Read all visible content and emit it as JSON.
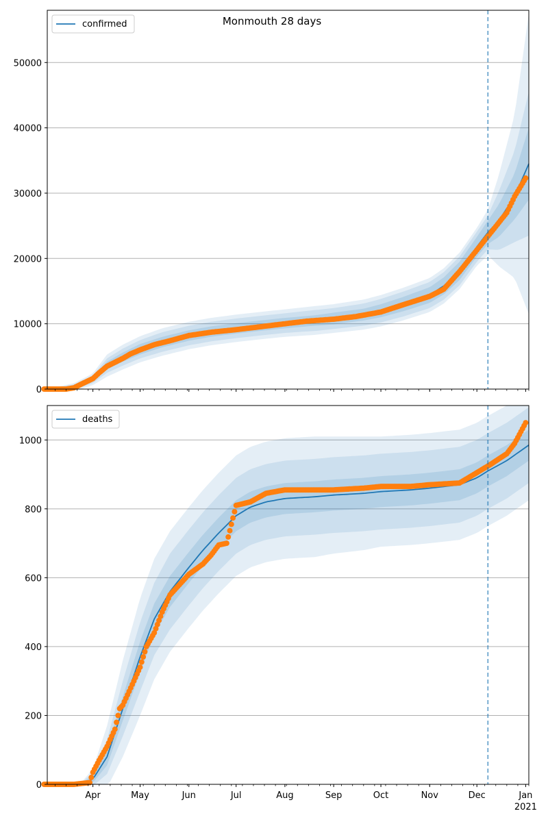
{
  "title": "Monmouth 28 days",
  "x_tick_labels": [
    "Apr",
    "May",
    "Jun",
    "Jul",
    "Aug",
    "Sep",
    "Oct",
    "Nov",
    "Dec",
    "Jan"
  ],
  "x_year_label": "2021",
  "chart_data": [
    {
      "type": "line",
      "panel": "top",
      "title": "Monmouth 28 days",
      "legend": [
        "confirmed"
      ],
      "legend_placement": "top-left",
      "grid": "horizontal",
      "xlim": [
        "2020-03-03",
        "2021-01-03"
      ],
      "ylim": [
        0,
        58000
      ],
      "y_ticks": [
        0,
        10000,
        20000,
        30000,
        40000,
        50000
      ],
      "forecast_start": "2020-12-08",
      "series": [
        {
          "name": "confirmed",
          "style": "model line with uncertainty bands",
          "x": [
            "2020-03-03",
            "2020-03-20",
            "2020-04-01",
            "2020-04-10",
            "2020-04-20",
            "2020-05-01",
            "2020-05-15",
            "2020-06-01",
            "2020-06-15",
            "2020-07-01",
            "2020-07-20",
            "2020-08-01",
            "2020-08-20",
            "2020-09-01",
            "2020-09-20",
            "2020-10-01",
            "2020-10-15",
            "2020-11-01",
            "2020-11-10",
            "2020-11-20",
            "2020-12-01",
            "2020-12-08",
            "2020-12-15",
            "2020-12-25",
            "2021-01-03"
          ],
          "values": [
            0,
            300,
            1500,
            3600,
            4900,
            6100,
            7200,
            8200,
            8800,
            9300,
            9800,
            10100,
            10500,
            10800,
            11400,
            12000,
            13000,
            14400,
            15800,
            18100,
            21800,
            24000,
            25800,
            29500,
            34500
          ],
          "band_50": [
            0,
            200,
            300,
            600,
            700,
            800,
            800,
            800,
            800,
            800,
            800,
            800,
            800,
            900,
            900,
            1000,
            1100,
            1200,
            1300,
            1400,
            1500,
            1800,
            2500,
            3500,
            5500
          ],
          "band_80": [
            0,
            400,
            600,
            1100,
            1300,
            1400,
            1500,
            1500,
            1500,
            1500,
            1500,
            1500,
            1600,
            1600,
            1700,
            1800,
            1900,
            2000,
            2100,
            2200,
            2300,
            2600,
            4500,
            7000,
            11000
          ],
          "band_95": [
            0,
            600,
            900,
            1700,
            1900,
            2000,
            2100,
            2100,
            2100,
            2100,
            2100,
            2100,
            2200,
            2200,
            2300,
            2400,
            2500,
            2600,
            2700,
            2800,
            2900,
            3500,
            7000,
            12500,
            23000
          ],
          "color": "#1f77b4"
        },
        {
          "name": "observed",
          "style": "dots",
          "x": [
            "2020-03-01",
            "2020-03-15",
            "2020-03-20",
            "2020-03-25",
            "2020-04-01",
            "2020-04-05",
            "2020-04-10",
            "2020-04-15",
            "2020-04-20",
            "2020-04-25",
            "2020-05-01",
            "2020-05-10",
            "2020-05-20",
            "2020-06-01",
            "2020-06-15",
            "2020-07-01",
            "2020-07-15",
            "2020-08-01",
            "2020-08-15",
            "2020-09-01",
            "2020-09-15",
            "2020-10-01",
            "2020-10-15",
            "2020-11-01",
            "2020-11-10",
            "2020-11-20",
            "2020-12-01",
            "2020-12-10",
            "2020-12-20",
            "2020-12-25",
            "2021-01-01"
          ],
          "values": [
            0,
            0,
            200,
            800,
            1600,
            2500,
            3500,
            4100,
            4700,
            5400,
            6000,
            6800,
            7400,
            8200,
            8700,
            9100,
            9500,
            10000,
            10400,
            10700,
            11100,
            11800,
            12900,
            14200,
            15300,
            18000,
            21300,
            24000,
            27000,
            29500,
            32300
          ],
          "color": "#ff7f0e"
        }
      ]
    },
    {
      "type": "line",
      "panel": "bottom",
      "legend": [
        "deaths"
      ],
      "legend_placement": "top-left",
      "grid": "horizontal",
      "xlim": [
        "2020-03-03",
        "2021-01-03"
      ],
      "ylim": [
        0,
        1100
      ],
      "y_ticks": [
        0,
        200,
        400,
        600,
        800,
        1000
      ],
      "forecast_start": "2020-12-08",
      "series": [
        {
          "name": "deaths",
          "style": "model line with uncertainty bands",
          "x": [
            "2020-03-03",
            "2020-03-25",
            "2020-04-01",
            "2020-04-10",
            "2020-04-20",
            "2020-05-01",
            "2020-05-10",
            "2020-05-20",
            "2020-06-01",
            "2020-06-10",
            "2020-06-20",
            "2020-07-01",
            "2020-07-10",
            "2020-07-20",
            "2020-08-01",
            "2020-08-20",
            "2020-09-01",
            "2020-09-20",
            "2020-10-01",
            "2020-10-20",
            "2020-11-01",
            "2020-11-20",
            "2020-12-01",
            "2020-12-08",
            "2020-12-20",
            "2021-01-03"
          ],
          "values": [
            0,
            2,
            15,
            80,
            220,
            370,
            480,
            560,
            630,
            680,
            730,
            780,
            805,
            820,
            830,
            835,
            840,
            845,
            850,
            855,
            860,
            870,
            890,
            910,
            940,
            985
          ],
          "band_50": [
            0,
            2,
            10,
            25,
            35,
            45,
            45,
            45,
            45,
            45,
            45,
            45,
            45,
            45,
            45,
            45,
            45,
            45,
            45,
            45,
            45,
            45,
            45,
            45,
            45,
            45
          ],
          "band_80": [
            0,
            3,
            20,
            50,
            80,
            100,
            105,
            110,
            110,
            110,
            110,
            110,
            110,
            110,
            110,
            110,
            110,
            110,
            110,
            110,
            110,
            110,
            110,
            110,
            110,
            110
          ],
          "band_95": [
            0,
            5,
            30,
            90,
            140,
            170,
            175,
            175,
            175,
            175,
            175,
            175,
            175,
            175,
            175,
            175,
            170,
            165,
            160,
            160,
            160,
            160,
            160,
            160,
            160,
            160
          ],
          "color": "#1f77b4"
        },
        {
          "name": "observed",
          "style": "dots",
          "x": [
            "2020-03-01",
            "2020-03-20",
            "2020-03-30",
            "2020-04-01",
            "2020-04-05",
            "2020-04-10",
            "2020-04-15",
            "2020-04-18",
            "2020-04-20",
            "2020-04-25",
            "2020-05-01",
            "2020-05-05",
            "2020-05-10",
            "2020-05-15",
            "2020-05-20",
            "2020-06-01",
            "2020-06-10",
            "2020-06-15",
            "2020-06-20",
            "2020-06-25",
            "2020-07-01",
            "2020-07-10",
            "2020-07-20",
            "2020-08-01",
            "2020-08-20",
            "2020-09-01",
            "2020-09-20",
            "2020-10-01",
            "2020-10-20",
            "2020-11-01",
            "2020-11-20",
            "2020-12-01",
            "2020-12-10",
            "2020-12-20",
            "2020-12-25",
            "2021-01-01"
          ],
          "values": [
            0,
            0,
            5,
            35,
            70,
            110,
            160,
            220,
            230,
            280,
            340,
            400,
            440,
            500,
            550,
            610,
            640,
            665,
            695,
            700,
            810,
            820,
            845,
            855,
            855,
            855,
            860,
            865,
            865,
            870,
            875,
            905,
            930,
            960,
            990,
            1050
          ],
          "color": "#ff7f0e"
        }
      ]
    }
  ],
  "colors": {
    "model": "#1f77b4",
    "observed": "#ff7f0e",
    "band": "#1f77b4",
    "grid": "#b0b0b0"
  }
}
